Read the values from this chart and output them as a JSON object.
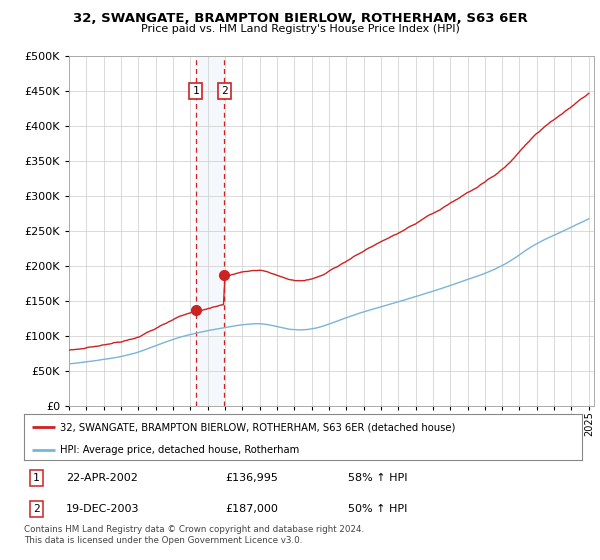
{
  "title": "32, SWANGATE, BRAMPTON BIERLOW, ROTHERHAM, S63 6ER",
  "subtitle": "Price paid vs. HM Land Registry's House Price Index (HPI)",
  "legend_line1": "32, SWANGATE, BRAMPTON BIERLOW, ROTHERHAM, S63 6ER (detached house)",
  "legend_line2": "HPI: Average price, detached house, Rotherham",
  "transaction1_date": "22-APR-2002",
  "transaction1_price": "£136,995",
  "transaction1_hpi": "58% ↑ HPI",
  "transaction2_date": "19-DEC-2003",
  "transaction2_price": "£187,000",
  "transaction2_hpi": "50% ↑ HPI",
  "footnote": "Contains HM Land Registry data © Crown copyright and database right 2024.\nThis data is licensed under the Open Government Licence v3.0.",
  "hpi_color": "#7ab4d8",
  "price_color": "#cc2222",
  "transaction_color": "#cc2222",
  "background_color": "#ffffff",
  "grid_color": "#cccccc",
  "yticks": [
    0,
    50000,
    100000,
    150000,
    200000,
    250000,
    300000,
    350000,
    400000,
    450000,
    500000
  ],
  "transaction1_x": 2002.31,
  "transaction2_x": 2003.97,
  "transaction1_price_val": 136995,
  "transaction2_price_val": 187000
}
